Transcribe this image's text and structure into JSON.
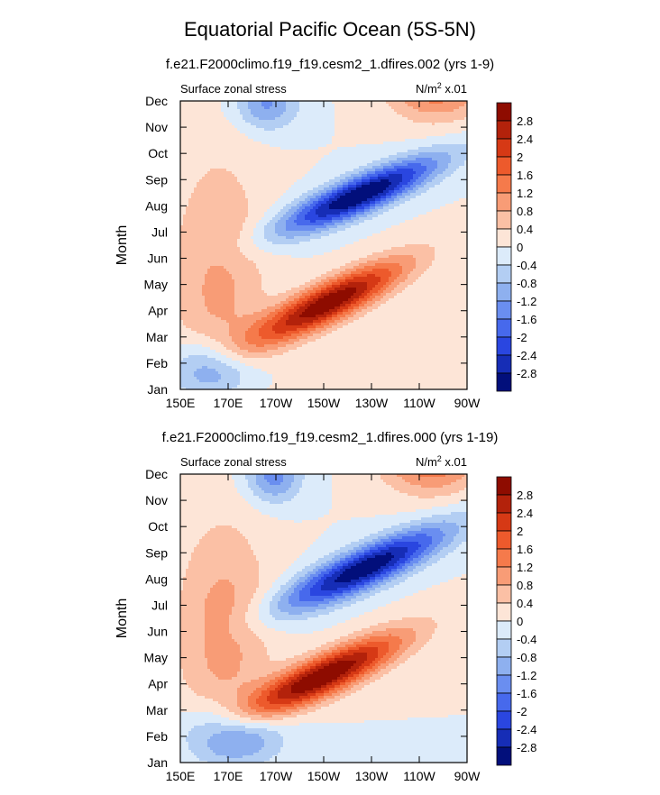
{
  "figure": {
    "title": "Equatorial Pacific Ocean (5S-5N)"
  },
  "chart_data": [
    {
      "type": "heatmap",
      "title": "f.e21.F2000climo.f19_f19.cesm2_1.dfires.002 (yrs 1-9)",
      "left_label": "Surface zonal stress",
      "units_label": "N/m",
      "units_sup": "2",
      "units_scale": " x.01",
      "ylabel": "Month",
      "xticks": [
        "150E",
        "170E",
        "170W",
        "150W",
        "130W",
        "110W",
        "90W"
      ],
      "yticks": [
        "Jan",
        "Feb",
        "Mar",
        "Apr",
        "May",
        "Jun",
        "Jul",
        "Aug",
        "Sep",
        "Oct",
        "Nov",
        "Dec"
      ],
      "x_range_lon_east": [
        150,
        270
      ],
      "features": [
        {
          "kind": "pos",
          "lon": 212,
          "month": 3.3,
          "amp": 3.2,
          "sx": 22,
          "sy": 1.1,
          "rho": -0.85
        },
        {
          "kind": "pos",
          "lon": 257,
          "month": 11.6,
          "amp": 1.6,
          "sx": 14,
          "sy": 0.9,
          "rho": 0
        },
        {
          "kind": "pos",
          "lon": 166,
          "month": 4.0,
          "amp": 0.9,
          "sx": 14,
          "sy": 3.5,
          "rho": 0
        },
        {
          "kind": "neg",
          "lon": 225,
          "month": 7.4,
          "amp": 3.3,
          "sx": 23,
          "sy": 1.0,
          "rho": -0.85
        },
        {
          "kind": "neg",
          "lon": 163,
          "month": 0.7,
          "amp": 1.6,
          "sx": 12,
          "sy": 0.8,
          "rho": 0
        },
        {
          "kind": "neg",
          "lon": 186,
          "month": 10.9,
          "amp": 1.3,
          "sx": 9,
          "sy": 0.7,
          "rho": 0
        }
      ]
    },
    {
      "type": "heatmap",
      "title": "f.e21.F2000climo.f19_f19.cesm2_1.dfires.000 (yrs 1-19)",
      "left_label": "Surface zonal stress",
      "units_label": "N/m",
      "units_sup": "2",
      "units_scale": " x.01",
      "ylabel": "Month",
      "xticks": [
        "150E",
        "170E",
        "170W",
        "150W",
        "130W",
        "110W",
        "90W"
      ],
      "yticks": [
        "Jan",
        "Feb",
        "Mar",
        "Apr",
        "May",
        "Jun",
        "Jul",
        "Aug",
        "Sep",
        "Oct",
        "Nov",
        "Dec"
      ],
      "x_range_lon_east": [
        150,
        270
      ],
      "features": [
        {
          "kind": "pos",
          "lon": 210,
          "month": 3.3,
          "amp": 3.3,
          "sx": 23,
          "sy": 1.1,
          "rho": -0.85
        },
        {
          "kind": "pos",
          "lon": 255,
          "month": 11.6,
          "amp": 1.7,
          "sx": 14,
          "sy": 0.9,
          "rho": 0
        },
        {
          "kind": "pos",
          "lon": 168,
          "month": 5.0,
          "amp": 1.0,
          "sx": 14,
          "sy": 3.0,
          "rho": 0
        },
        {
          "kind": "neg",
          "lon": 227,
          "month": 7.4,
          "amp": 3.2,
          "sx": 24,
          "sy": 1.1,
          "rho": -0.85
        },
        {
          "kind": "neg",
          "lon": 171,
          "month": 1.0,
          "amp": 1.8,
          "sx": 14,
          "sy": 0.8,
          "rho": 0
        },
        {
          "kind": "neg",
          "lon": 189,
          "month": 10.9,
          "amp": 1.4,
          "sx": 8,
          "sy": 0.7,
          "rho": 0
        }
      ]
    }
  ],
  "colorbar": {
    "levels": [
      "2.8",
      "2.4",
      "2",
      "1.6",
      "1.2",
      "0.8",
      "0.4",
      "0",
      "-0.4",
      "-0.8",
      "-1.2",
      "-1.6",
      "-2",
      "-2.4",
      "-2.8"
    ],
    "colors": [
      "#8e0c00",
      "#b3220b",
      "#d63915",
      "#ed5a2c",
      "#f57a4b",
      "#f89c76",
      "#fbc0a5",
      "#fde5d7",
      "#dcebfa",
      "#b3cef3",
      "#8eb0ef",
      "#6a8ef0",
      "#4769ec",
      "#2a46e0",
      "#162db6",
      "#020f7b"
    ]
  }
}
